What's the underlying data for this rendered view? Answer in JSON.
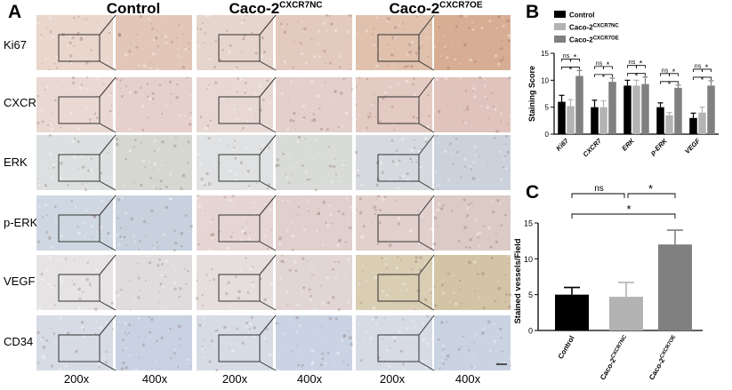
{
  "panel_a": {
    "letter": "A",
    "groups": [
      {
        "title": "Control",
        "sup": ""
      },
      {
        "title": "Caco-2",
        "sup": "CXCR7NC"
      },
      {
        "title": "Caco-2",
        "sup": "CXCR7OE"
      }
    ],
    "rows": [
      "Ki67",
      "CXCR7",
      "ERK",
      "p-ERK",
      "VEGF",
      "CD34"
    ],
    "magnifications": [
      "200x",
      "400x",
      "200x",
      "400x",
      "200x",
      "400x"
    ],
    "tile_colors": [
      [
        "#e9d6cc",
        "#e2c7b9",
        "#e6d5cc",
        "#e3cabf",
        "#e0c1ad",
        "#d7ae93"
      ],
      [
        "#ead8d3",
        "#e6d0cc",
        "#e8d8d3",
        "#e3cfcb",
        "#e3cac2",
        "#dfc3bc"
      ],
      [
        "#dde0e0",
        "#d6d7d0",
        "#dfe1e2",
        "#d9dbd8",
        "#d6dadf",
        "#ccd2dc"
      ],
      [
        "#cfd8e2",
        "#c7d2de",
        "#e6d6d3",
        "#e1cfcd",
        "#e1d0cc",
        "#dccac6"
      ],
      [
        "#e6e3e4",
        "#e0dcdd",
        "#e5dedc",
        "#e1d6d3",
        "#d9cdb3",
        "#d3c4a6"
      ],
      [
        "#d7dbe5",
        "#c9d2e2",
        "#d6dbe5",
        "#cad3e3",
        "#d6dbe5",
        "#c9d3e2"
      ]
    ]
  },
  "chart_b": {
    "letter": "B",
    "type": "bar",
    "ylabel": "Staining Score",
    "ylim": [
      0,
      15
    ],
    "yticks": [
      "0",
      "5",
      "10",
      "15"
    ],
    "categories": [
      "Ki67",
      "CXCR7",
      "ERK",
      "p-ERK",
      "VEGF"
    ],
    "legend": [
      {
        "name": "Control",
        "sup": "",
        "color": "#000000"
      },
      {
        "name": "Caco-2",
        "sup": "CXCR7NC",
        "color": "#b3b3b3"
      },
      {
        "name": "Caco-2",
        "sup": "CXCR7OE",
        "color": "#808080"
      }
    ],
    "series": [
      {
        "values": [
          6.0,
          5.0,
          9.0,
          5.0,
          3.0
        ],
        "errors": [
          1.2,
          1.3,
          1.0,
          0.8,
          0.9
        ]
      },
      {
        "values": [
          5.2,
          5.0,
          9.0,
          3.5,
          4.0
        ],
        "errors": [
          1.2,
          1.2,
          1.0,
          0.5,
          1.0
        ]
      },
      {
        "values": [
          10.8,
          9.7,
          9.3,
          8.6,
          9.0
        ],
        "errors": [
          1.0,
          0.7,
          1.3,
          0.5,
          0.9
        ]
      }
    ],
    "annotations": {
      "ns": "ns",
      "star": "*"
    },
    "legend_position": "top-left"
  },
  "chart_c": {
    "letter": "C",
    "type": "bar",
    "ylabel": "Stained vessels/Field",
    "ylim": [
      0,
      15
    ],
    "yticks": [
      "0",
      "5",
      "10",
      "15"
    ],
    "categories": [
      {
        "name": "Control",
        "sup": ""
      },
      {
        "name": "Caco-2",
        "sup": "CXCR7NC"
      },
      {
        "name": "Caco-2",
        "sup": "CXCR7OE"
      }
    ],
    "values": [
      5.0,
      4.7,
      12.0
    ],
    "errors": [
      1.0,
      2.0,
      2.0
    ],
    "colors": [
      "#000000",
      "#b3b3b3",
      "#808080"
    ],
    "bracket_ns": "ns",
    "bracket_star": "*",
    "bracket_wide_star": "*"
  }
}
